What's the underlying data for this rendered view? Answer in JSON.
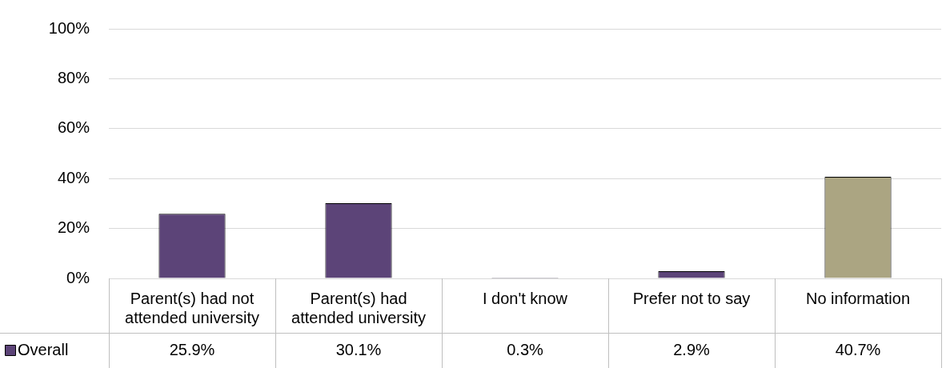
{
  "chart_data": {
    "type": "bar",
    "categories": [
      "Parent(s) had not attended university",
      "Parent(s) had attended university",
      "I don't know",
      "Prefer not to say",
      "No information"
    ],
    "series": [
      {
        "name": "Overall",
        "color": "#5c4478",
        "colors": [
          "#5c4478",
          "#5c4478",
          "#5c4478",
          "#5c4478",
          "#aba582"
        ],
        "values": [
          25.9,
          30.1,
          0.3,
          2.9,
          40.7
        ],
        "value_labels": [
          "25.9%",
          "30.1%",
          "0.3%",
          "2.9%",
          "40.7%"
        ]
      }
    ],
    "ylim": [
      0,
      100
    ],
    "yticks": [
      {
        "value": 0,
        "label": "0%"
      },
      {
        "value": 20,
        "label": "20%"
      },
      {
        "value": 40,
        "label": "40%"
      },
      {
        "value": 60,
        "label": "60%"
      },
      {
        "value": 80,
        "label": "80%"
      },
      {
        "value": 100,
        "label": "100%"
      }
    ],
    "grid": "y",
    "legend": "bottom left"
  }
}
